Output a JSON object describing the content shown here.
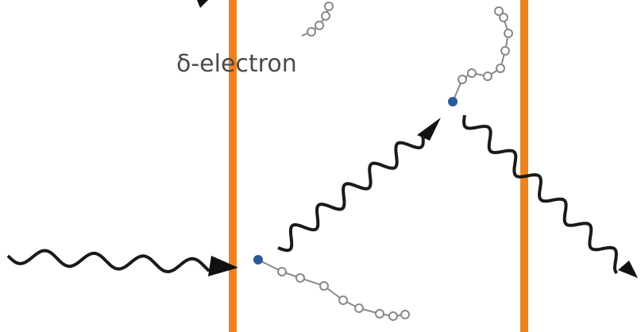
{
  "labels": {
    "delta_electron": "δ-electron"
  }
}
